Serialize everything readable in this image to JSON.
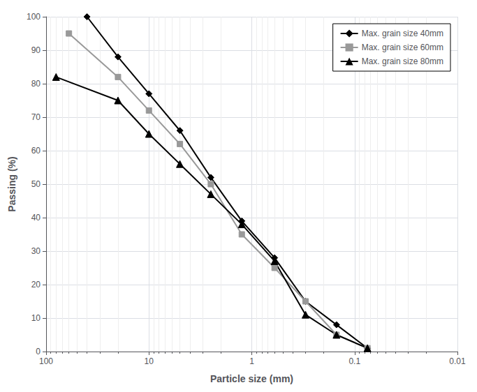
{
  "chart_data": {
    "type": "line",
    "xlabel": "Particle size (mm)",
    "ylabel": "Passing (%)",
    "log": "x",
    "xlim": [
      100,
      0.01
    ],
    "xticks": [
      100,
      10,
      1,
      0.1,
      0.01
    ],
    "ylim": [
      0,
      100
    ],
    "yticks": [
      0,
      10,
      20,
      30,
      40,
      50,
      60,
      70,
      80,
      90,
      100
    ],
    "grid": true,
    "legend": "upper right",
    "series": [
      {
        "name": "Max. grain size 40mm",
        "color": "#000000",
        "marker": "diamond",
        "x": [
          40,
          20,
          10,
          5,
          2.5,
          1.25,
          0.6,
          0.3,
          0.15,
          0.075
        ],
        "values": [
          100,
          88,
          77,
          66,
          52,
          39,
          28,
          15,
          8,
          1
        ]
      },
      {
        "name": "Max. grain size 60mm",
        "color": "#999999",
        "marker": "square",
        "x": [
          60,
          20,
          10,
          5,
          2.5,
          1.25,
          0.6,
          0.3,
          0.15,
          0.075
        ],
        "values": [
          95,
          82,
          72,
          62,
          50,
          35,
          25,
          15,
          5,
          1
        ]
      },
      {
        "name": "Max. grain size 80mm",
        "color": "#000000",
        "marker": "triangle",
        "x": [
          80,
          20,
          10,
          5,
          2.5,
          1.25,
          0.6,
          0.3,
          0.15,
          0.075
        ],
        "values": [
          82,
          75,
          65,
          56,
          47,
          38,
          27,
          11,
          5,
          1
        ]
      }
    ]
  }
}
